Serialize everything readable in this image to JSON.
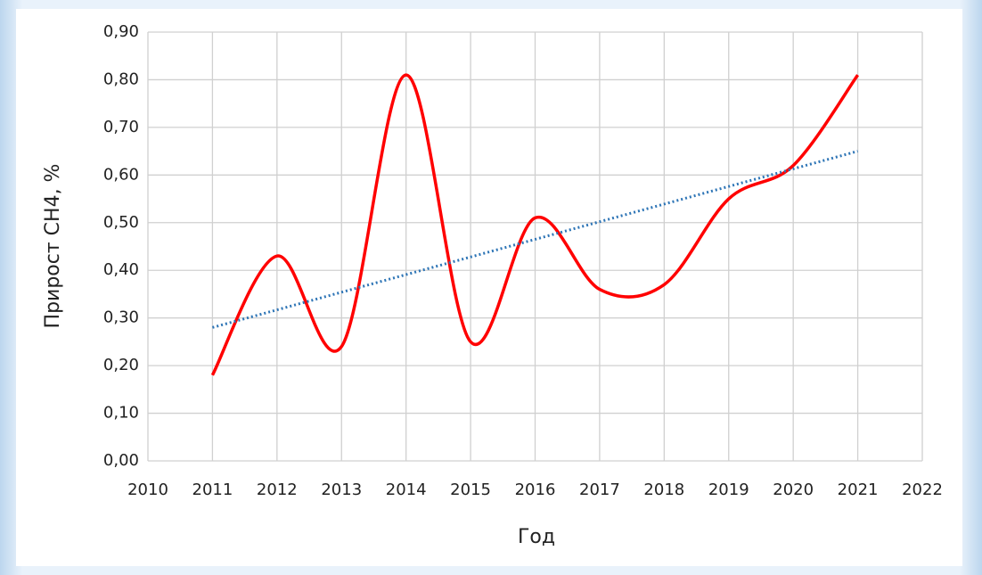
{
  "chart_data": {
    "type": "line",
    "x_label": "Год",
    "y_label": "Прирост CH4, %",
    "x": [
      2011,
      2012,
      2013,
      2014,
      2015,
      2016,
      2017,
      2018,
      2019,
      2020,
      2021
    ],
    "values": [
      0.18,
      0.43,
      0.24,
      0.81,
      0.25,
      0.51,
      0.36,
      0.37,
      0.55,
      0.62,
      0.81
    ],
    "color": "#ff0000",
    "smooth": true,
    "trend": {
      "x": [
        2011,
        2021
      ],
      "values": [
        0.28,
        0.65
      ],
      "color": "#2e75b6"
    },
    "xlim": [
      2010,
      2022
    ],
    "xticks": [
      2010,
      2011,
      2012,
      2013,
      2014,
      2015,
      2016,
      2017,
      2018,
      2019,
      2020,
      2021,
      2022
    ],
    "ylim": [
      0,
      0.9
    ],
    "yticks": [
      {
        "value": 0,
        "label": "0,00"
      },
      {
        "value": 0.1,
        "label": "0,10"
      },
      {
        "value": 0.2,
        "label": "0,20"
      },
      {
        "value": 0.3,
        "label": "0,30"
      },
      {
        "value": 0.4,
        "label": "0,40"
      },
      {
        "value": 0.5,
        "label": "0,50"
      },
      {
        "value": 0.6,
        "label": "0,60"
      },
      {
        "value": 0.7,
        "label": "0,70"
      },
      {
        "value": 0.8,
        "label": "0,80"
      },
      {
        "value": 0.9,
        "label": "0,90"
      }
    ],
    "grid": true
  }
}
